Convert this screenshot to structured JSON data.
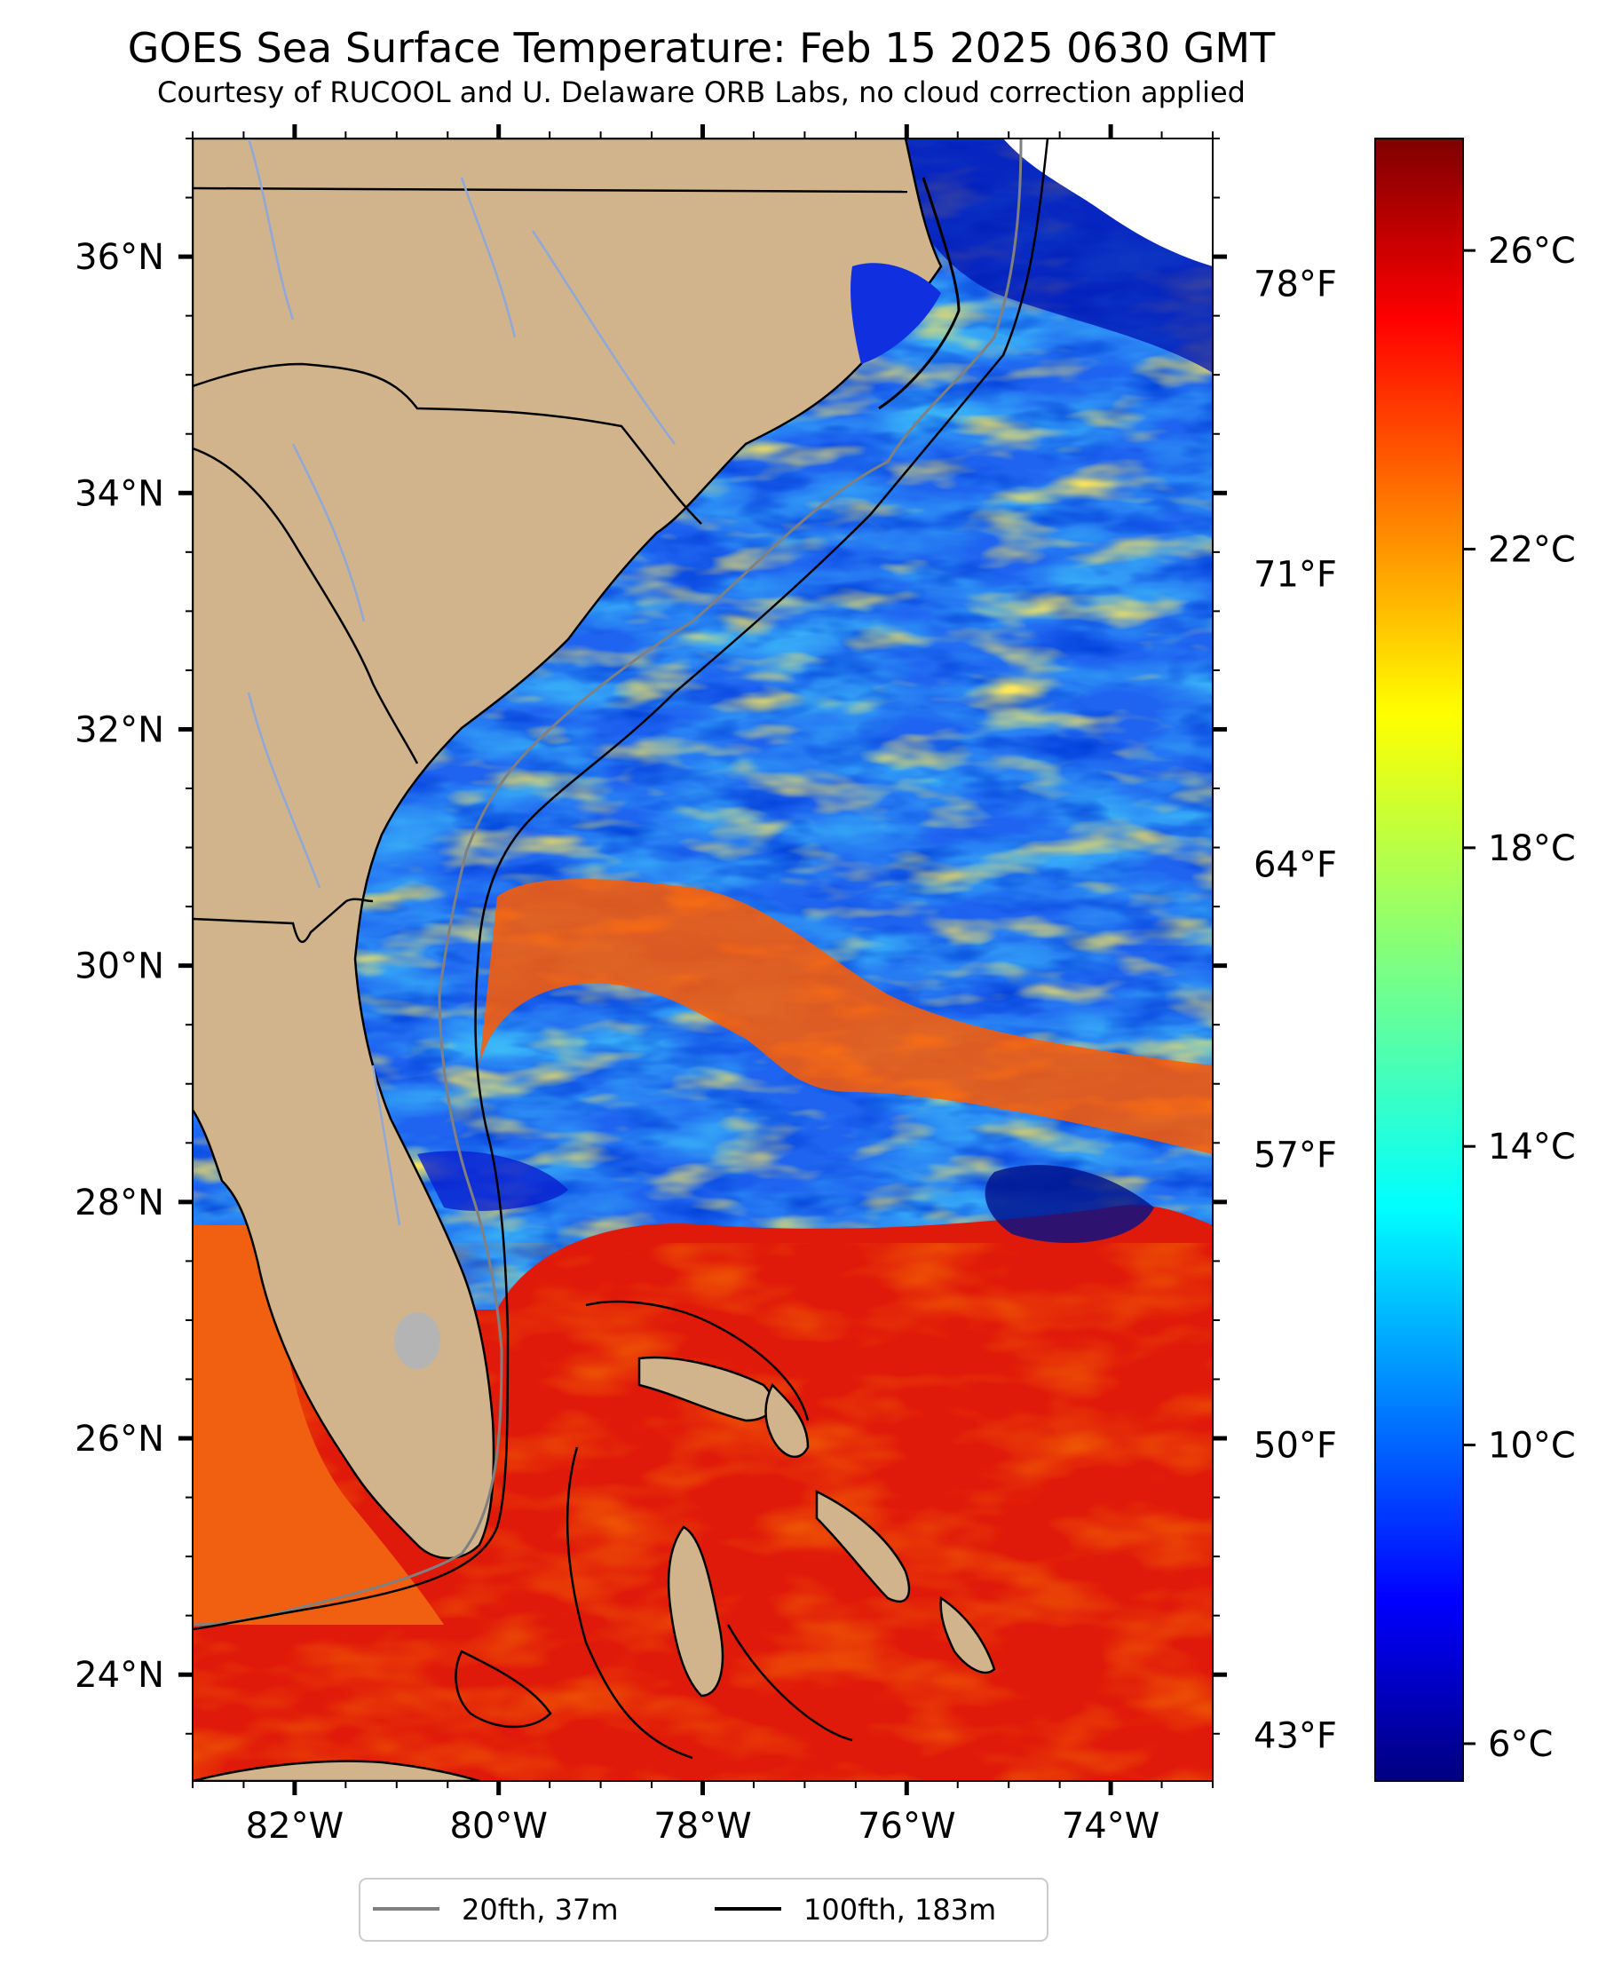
{
  "title": "GOES Sea Surface Temperature: Feb 15 2025 0630 GMT",
  "subtitle": "Courtesy of RUCOOL and U. Delaware ORB Labs, no cloud correction applied",
  "map": {
    "lon_range": [
      -83,
      -73
    ],
    "lat_range": [
      23.1,
      37.0
    ],
    "lon_ticks": [
      {
        "value": -82,
        "label": "82°W"
      },
      {
        "value": -80,
        "label": "80°W"
      },
      {
        "value": -78,
        "label": "78°W"
      },
      {
        "value": -76,
        "label": "76°W"
      },
      {
        "value": -74,
        "label": "74°W"
      }
    ],
    "lat_ticks": [
      {
        "value": 24,
        "label": "24°N"
      },
      {
        "value": 26,
        "label": "26°N"
      },
      {
        "value": 28,
        "label": "28°N"
      },
      {
        "value": 30,
        "label": "30°N"
      },
      {
        "value": 32,
        "label": "32°N"
      },
      {
        "value": 34,
        "label": "34°N"
      },
      {
        "value": 36,
        "label": "36°N"
      }
    ],
    "land_color": "#d2b48c",
    "river_color": "#8fa8d8"
  },
  "colorbar": {
    "colormap": "jet",
    "range_c": [
      5.5,
      27.5
    ],
    "celsius_ticks": [
      {
        "value": 6,
        "label": "6°C"
      },
      {
        "value": 10,
        "label": "10°C"
      },
      {
        "value": 14,
        "label": "14°C"
      },
      {
        "value": 18,
        "label": "18°C"
      },
      {
        "value": 22,
        "label": "22°C"
      },
      {
        "value": 26,
        "label": "26°C"
      }
    ],
    "fahrenheit_ticks": [
      {
        "value": 43,
        "label": "43°F"
      },
      {
        "value": 50,
        "label": "50°F"
      },
      {
        "value": 57,
        "label": "57°F"
      },
      {
        "value": 64,
        "label": "64°F"
      },
      {
        "value": 71,
        "label": "71°F"
      },
      {
        "value": 78,
        "label": "78°F"
      }
    ]
  },
  "legend": {
    "position": "bottom-center",
    "items": [
      {
        "label": "20fth, 37m",
        "color": "#808080"
      },
      {
        "label": "100fth, 183m",
        "color": "#000000"
      }
    ]
  }
}
